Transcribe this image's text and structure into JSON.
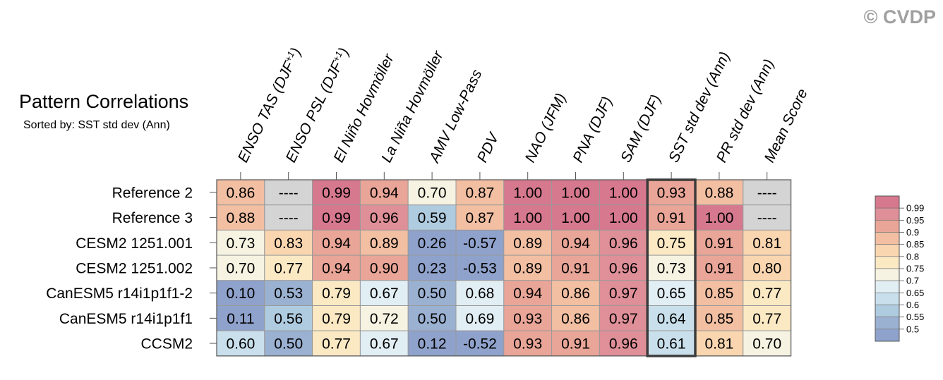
{
  "watermark": "© CVDP",
  "chart_data": {
    "type": "heatmap",
    "title": "Pattern Correlations",
    "subtitle": "Sorted by: SST std dev (Ann)",
    "columns": [
      "ENSO TAS (DJF+1)",
      "ENSO PSL (DJF+1)",
      "El Niño Hovmöller",
      "La Niña Hovmöller",
      "AMV Low-Pass",
      "PDV",
      "NAO (JFM)",
      "PNA (DJF)",
      "SAM (DJF)",
      "SST std dev (Ann)",
      "PR std dev (Ann)",
      "Mean Score"
    ],
    "column_labels": [
      {
        "text": "ENSO TAS (DJF",
        "sup": "+1",
        "end": ")"
      },
      {
        "text": "ENSO PSL (DJF",
        "sup": "+1",
        "end": ")"
      },
      {
        "text": "El Niño Hovmöller",
        "sup": "",
        "end": ""
      },
      {
        "text": "La Niña Hovmöller",
        "sup": "",
        "end": ""
      },
      {
        "text": "AMV Low-Pass",
        "sup": "",
        "end": ""
      },
      {
        "text": "PDV",
        "sup": "",
        "end": ""
      },
      {
        "text": "NAO (JFM)",
        "sup": "",
        "end": ""
      },
      {
        "text": "PNA (DJF)",
        "sup": "",
        "end": ""
      },
      {
        "text": "SAM (DJF)",
        "sup": "",
        "end": ""
      },
      {
        "text": "SST std dev (Ann)",
        "sup": "",
        "end": ""
      },
      {
        "text": "PR std dev (Ann)",
        "sup": "",
        "end": ""
      },
      {
        "text": "Mean Score",
        "sup": "",
        "end": ""
      }
    ],
    "rows": [
      "Reference 2",
      "Reference 3",
      "CESM2 1251.001",
      "CESM2 1251.002",
      "CanESM5 r14i1p1f1-2",
      "CanESM5 r14i1p1f1",
      "CCSM2"
    ],
    "values": [
      [
        "0.86",
        "----",
        "0.99",
        "0.94",
        "0.70",
        "0.87",
        "1.00",
        "1.00",
        "1.00",
        "0.93",
        "0.88",
        "----"
      ],
      [
        "0.88",
        "----",
        "0.99",
        "0.96",
        "0.59",
        "0.87",
        "1.00",
        "1.00",
        "1.00",
        "0.91",
        "1.00",
        "----"
      ],
      [
        "0.73",
        "0.83",
        "0.94",
        "0.89",
        "0.26",
        "-0.57",
        "0.89",
        "0.94",
        "0.96",
        "0.75",
        "0.91",
        "0.81"
      ],
      [
        "0.70",
        "0.77",
        "0.94",
        "0.90",
        "0.23",
        "-0.53",
        "0.89",
        "0.91",
        "0.96",
        "0.73",
        "0.91",
        "0.80"
      ],
      [
        "0.10",
        "0.53",
        "0.79",
        "0.67",
        "0.50",
        "0.68",
        "0.94",
        "0.86",
        "0.97",
        "0.65",
        "0.85",
        "0.77"
      ],
      [
        "0.11",
        "0.56",
        "0.79",
        "0.72",
        "0.50",
        "0.69",
        "0.93",
        "0.86",
        "0.97",
        "0.64",
        "0.85",
        "0.77"
      ],
      [
        "0.60",
        "0.50",
        "0.77",
        "0.67",
        "0.12",
        "-0.52",
        "0.93",
        "0.91",
        "0.96",
        "0.61",
        "0.81",
        "0.70"
      ]
    ],
    "missing_value_text": "----",
    "highlighted_column": "SST std dev (Ann)",
    "colorbar": {
      "levels": [
        "0.99",
        "0.95",
        "0.9",
        "0.85",
        "0.8",
        "0.75",
        "0.7",
        "0.65",
        "0.6",
        "0.55",
        "0.5"
      ],
      "colors": [
        "#d6788e",
        "#df8f98",
        "#e9a597",
        "#f2bfa2",
        "#f9d6b0",
        "#fbe9c4",
        "#f6f3e2",
        "#e1eef4",
        "#c9e0ec",
        "#afcbe0",
        "#9bb1d2",
        "#8fa2cc"
      ]
    },
    "missing_color": "#d4d4d4"
  }
}
